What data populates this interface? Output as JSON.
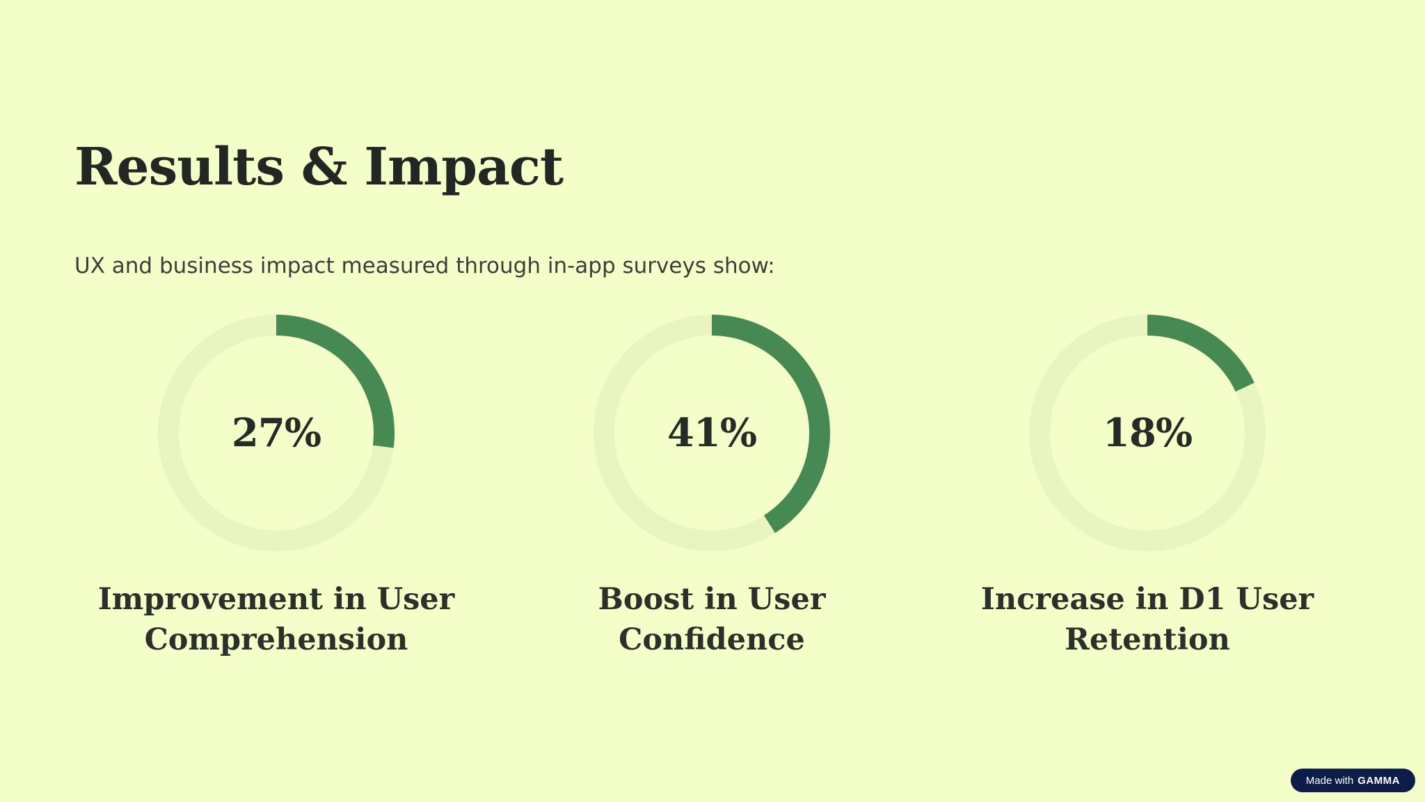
{
  "slide": {
    "title": "Results & Impact",
    "subtitle": "UX and business impact measured through in-app surveys show:"
  },
  "colors": {
    "background": "#f4fec8",
    "ring_track": "#e9f5c0",
    "ring_fill": "#468952",
    "text": "#262b26"
  },
  "stats": [
    {
      "value_label": "27%",
      "percent": 27,
      "label_line1": "Improvement in User",
      "label_line2": "Comprehension"
    },
    {
      "value_label": "41%",
      "percent": 41,
      "label_line1": "Boost in User",
      "label_line2": "Confidence"
    },
    {
      "value_label": "18%",
      "percent": 18,
      "label_line1": "Increase in D1 User",
      "label_line2": "Retention"
    }
  ],
  "badge": {
    "prefix": "Made with",
    "brand": "GAMMA"
  }
}
